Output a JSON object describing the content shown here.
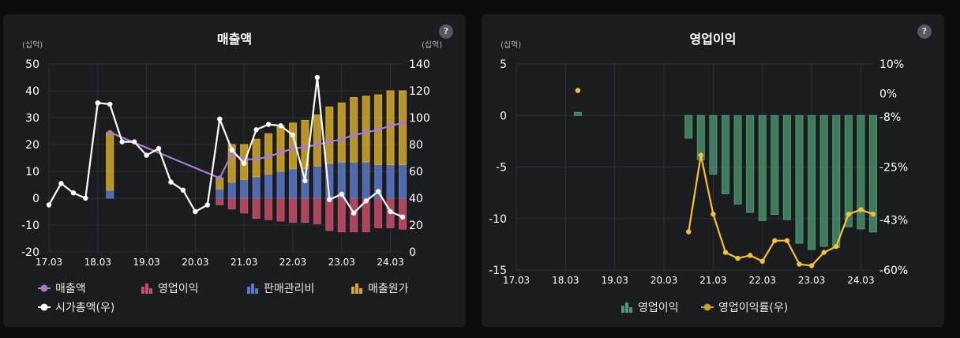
{
  "charts": {
    "left": {
      "title": "매출액",
      "help": "?"
    },
    "right": {
      "title": "영업이익",
      "help": "?"
    }
  },
  "chart_data": [
    {
      "type": "bar",
      "title": "매출액",
      "ylabel_left": "(십억)",
      "ylabel_right": "(십억)",
      "ylim_left": [
        -20,
        50
      ],
      "yticks_left": [
        -20,
        -10,
        0,
        10,
        20,
        30,
        40,
        50
      ],
      "ylim_right": [
        0,
        140
      ],
      "yticks_right": [
        0,
        20,
        40,
        60,
        80,
        100,
        120,
        140
      ],
      "x_range": [
        0,
        29
      ],
      "xticks": [
        {
          "i": 0,
          "label": "17.03"
        },
        {
          "i": 4,
          "label": "18.03"
        },
        {
          "i": 8,
          "label": "19.03"
        },
        {
          "i": 12,
          "label": "20.03"
        },
        {
          "i": 16,
          "label": "21.03"
        },
        {
          "i": 20,
          "label": "22.03"
        },
        {
          "i": 24,
          "label": "23.03"
        },
        {
          "i": 28,
          "label": "24.03"
        }
      ],
      "bar_series": [
        {
          "name": "영업이익",
          "color": "#c44e6a",
          "points": [
            [
              5,
              0
            ],
            [
              14,
              -2.5
            ],
            [
              15,
              -4
            ],
            [
              16,
              -5.5
            ],
            [
              17,
              -7.5
            ],
            [
              18,
              -8
            ],
            [
              19,
              -8.5
            ],
            [
              20,
              -9
            ],
            [
              21,
              -9
            ],
            [
              22,
              -9.5
            ],
            [
              23,
              -12
            ],
            [
              24,
              -12.5
            ],
            [
              25,
              -12.5
            ],
            [
              26,
              -12.5
            ],
            [
              27,
              -11
            ],
            [
              28,
              -11
            ],
            [
              29,
              -11.5
            ]
          ]
        },
        {
          "name": "판매관리비",
          "color": "#5b78c5",
          "points": [
            [
              5,
              3
            ],
            [
              14,
              3.5
            ],
            [
              15,
              6
            ],
            [
              16,
              7
            ],
            [
              17,
              8
            ],
            [
              18,
              9
            ],
            [
              19,
              10
            ],
            [
              20,
              11
            ],
            [
              21,
              11
            ],
            [
              22,
              12
            ],
            [
              23,
              13
            ],
            [
              24,
              13.5
            ],
            [
              25,
              13.5
            ],
            [
              26,
              13.5
            ],
            [
              27,
              12.5
            ],
            [
              28,
              12.5
            ],
            [
              29,
              12.5
            ]
          ]
        },
        {
          "name": "매출원가",
          "color": "#d4a92a",
          "points": [
            [
              5,
              21.5
            ],
            [
              14,
              4
            ],
            [
              15,
              14
            ],
            [
              16,
              13
            ],
            [
              17,
              14
            ],
            [
              18,
              15
            ],
            [
              19,
              17
            ],
            [
              20,
              17
            ],
            [
              21,
              18
            ],
            [
              22,
              19
            ],
            [
              23,
              21
            ],
            [
              24,
              22
            ],
            [
              25,
              24
            ],
            [
              26,
              24.5
            ],
            [
              27,
              26
            ],
            [
              28,
              27.5
            ],
            [
              29,
              27.5
            ]
          ]
        }
      ],
      "line_series": [
        {
          "name": "매출액",
          "color": "#a17dcc",
          "axis": "left",
          "points": [
            [
              5,
              24.5
            ],
            [
              14,
              7.5
            ],
            [
              15,
              16.5
            ],
            [
              16,
              14.5
            ],
            [
              17,
              14.5
            ],
            [
              18,
              15.5
            ],
            [
              19,
              17
            ],
            [
              20,
              18.5
            ],
            [
              21,
              19
            ],
            [
              22,
              20
            ],
            [
              23,
              21
            ],
            [
              24,
              22
            ],
            [
              25,
              23.5
            ],
            [
              26,
              24.5
            ],
            [
              27,
              25.5
            ],
            [
              28,
              27
            ],
            [
              29,
              28
            ]
          ]
        },
        {
          "name": "시가총액(우)",
          "color": "#ffffff",
          "axis": "right",
          "points": [
            [
              0,
              35
            ],
            [
              1,
              51
            ],
            [
              2,
              44
            ],
            [
              3,
              40
            ],
            [
              4,
              111
            ],
            [
              5,
              110
            ],
            [
              6,
              82
            ],
            [
              7,
              82
            ],
            [
              8,
              72
            ],
            [
              9,
              77
            ],
            [
              10,
              52
            ],
            [
              11,
              46
            ],
            [
              12,
              30
            ],
            [
              13,
              35
            ],
            [
              14,
              99
            ],
            [
              15,
              76
            ],
            [
              16,
              66
            ],
            [
              17,
              91
            ],
            [
              18,
              95
            ],
            [
              19,
              94
            ],
            [
              20,
              87
            ],
            [
              21,
              53
            ],
            [
              22,
              130
            ],
            [
              23,
              39
            ],
            [
              24,
              43
            ],
            [
              25,
              29
            ],
            [
              26,
              38
            ],
            [
              27,
              45
            ],
            [
              28,
              30
            ],
            [
              29,
              26
            ]
          ]
        }
      ],
      "legend": [
        {
          "label": "매출액",
          "kind": "line",
          "color": "#a17dcc"
        },
        {
          "label": "영업이익",
          "kind": "bar",
          "color": "#c44e6a"
        },
        {
          "label": "판매관리비",
          "kind": "bar",
          "color": "#5b78c5"
        },
        {
          "label": "매출원가",
          "kind": "bar",
          "color": "#d4a92a"
        },
        {
          "label": "시가총액(우)",
          "kind": "line",
          "color": "#ffffff"
        }
      ]
    },
    {
      "type": "bar",
      "title": "영업이익",
      "ylabel_left": "(십억)",
      "ylim_left": [
        -15,
        5
      ],
      "yticks_left": [
        -15,
        -10,
        -5,
        0,
        5
      ],
      "ylim_right": [
        -60,
        10
      ],
      "yticks_right": [
        {
          "v": 10,
          "label": "10%"
        },
        {
          "v": 0,
          "label": "0%"
        },
        {
          "v": -8,
          "label": "-8%"
        },
        {
          "v": -25,
          "label": "-25%"
        },
        {
          "v": -43,
          "label": "-43%"
        },
        {
          "v": -60,
          "label": "-60%"
        }
      ],
      "x_range": [
        0,
        29
      ],
      "xticks": [
        {
          "i": 0,
          "label": "17.03"
        },
        {
          "i": 4,
          "label": "18.03"
        },
        {
          "i": 8,
          "label": "19.03"
        },
        {
          "i": 12,
          "label": "20.03"
        },
        {
          "i": 16,
          "label": "21.03"
        },
        {
          "i": 20,
          "label": "22.03"
        },
        {
          "i": 24,
          "label": "23.03"
        },
        {
          "i": 28,
          "label": "24.03"
        }
      ],
      "bar_series": [
        {
          "name": "영업이익",
          "color": "#4e9a74",
          "points": [
            [
              5,
              0.3
            ],
            [
              14,
              -2.2
            ],
            [
              15,
              -4.3
            ],
            [
              16,
              -5.7
            ],
            [
              17,
              -7.6
            ],
            [
              18,
              -8.6
            ],
            [
              19,
              -9.4
            ],
            [
              20,
              -10.2
            ],
            [
              21,
              -9.6
            ],
            [
              22,
              -10.1
            ],
            [
              23,
              -12.4
            ],
            [
              24,
              -13
            ],
            [
              25,
              -12.7
            ],
            [
              26,
              -12.8
            ],
            [
              27,
              -10.8
            ],
            [
              28,
              -11
            ],
            [
              29,
              -11.3
            ]
          ]
        }
      ],
      "line_series": [
        {
          "name": "영업이익률(우)",
          "color": "#f4c430",
          "axis": "right",
          "segments": [
            [
              [
                5,
                1
              ]
            ],
            [
              [
                14,
                -47
              ],
              [
                15,
                -21
              ],
              [
                16,
                -41
              ],
              [
                17,
                -54
              ],
              [
                18,
                -56
              ],
              [
                19,
                -55
              ],
              [
                20,
                -57
              ],
              [
                21,
                -50
              ],
              [
                22,
                -50
              ],
              [
                23,
                -58
              ],
              [
                24,
                -58.5
              ],
              [
                25,
                -54
              ],
              [
                26,
                -52
              ],
              [
                27,
                -41
              ],
              [
                28,
                -39.5
              ],
              [
                29,
                -41
              ]
            ]
          ]
        }
      ],
      "legend": [
        {
          "label": "영업이익",
          "kind": "bar",
          "color": "#4e9a74"
        },
        {
          "label": "영업이익률(우)",
          "kind": "line",
          "color": "#c9a227"
        }
      ]
    }
  ]
}
